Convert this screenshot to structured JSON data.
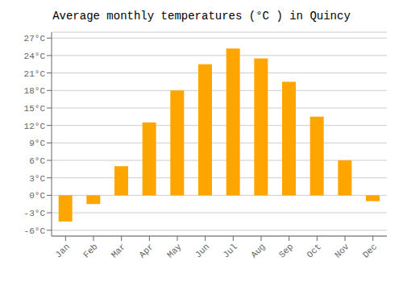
{
  "chart_data": {
    "type": "bar",
    "title": "Average monthly temperatures (°C ) in Quincy",
    "categories": [
      "Jan",
      "Feb",
      "Mar",
      "Apr",
      "May",
      "Jun",
      "Jul",
      "Aug",
      "Sep",
      "Oct",
      "Nov",
      "Dec"
    ],
    "values": [
      -4.5,
      -1.5,
      5.0,
      12.5,
      18.0,
      22.5,
      25.2,
      23.5,
      19.5,
      13.5,
      6.0,
      -1.0
    ],
    "color": "#FFA500",
    "ylim": [
      -7,
      28
    ],
    "yticks": [
      {
        "value": -6,
        "label": "-6°C"
      },
      {
        "value": -3,
        "label": "-3°C"
      },
      {
        "value": 0,
        "label": "0°C"
      },
      {
        "value": 3,
        "label": "3°C"
      },
      {
        "value": 6,
        "label": "6°C"
      },
      {
        "value": 9,
        "label": "9°C"
      },
      {
        "value": 12,
        "label": "12°C"
      },
      {
        "value": 15,
        "label": "15°C"
      },
      {
        "value": 18,
        "label": "18°C"
      },
      {
        "value": 21,
        "label": "21°C"
      },
      {
        "value": 24,
        "label": "24°C"
      },
      {
        "value": 27,
        "label": "27°C"
      }
    ],
    "grid": true
  }
}
